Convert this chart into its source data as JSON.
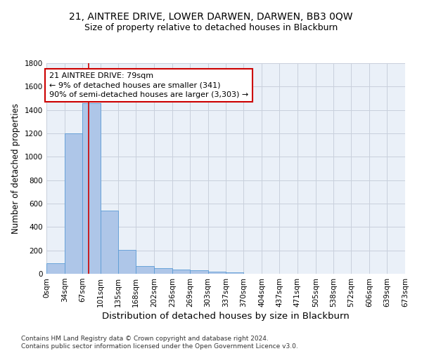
{
  "title": "21, AINTREE DRIVE, LOWER DARWEN, DARWEN, BB3 0QW",
  "subtitle": "Size of property relative to detached houses in Blackburn",
  "xlabel": "Distribution of detached houses by size in Blackburn",
  "ylabel": "Number of detached properties",
  "bar_values": [
    90,
    1200,
    1460,
    540,
    205,
    65,
    48,
    38,
    30,
    18,
    12,
    0,
    0,
    0,
    0,
    0,
    0,
    0,
    0,
    0
  ],
  "bin_edges": [
    0,
    34,
    67,
    101,
    135,
    168,
    202,
    236,
    269,
    303,
    337,
    370,
    404,
    437,
    471,
    505,
    538,
    572,
    606,
    639,
    673
  ],
  "tick_labels": [
    "0sqm",
    "34sqm",
    "67sqm",
    "101sqm",
    "135sqm",
    "168sqm",
    "202sqm",
    "236sqm",
    "269sqm",
    "303sqm",
    "337sqm",
    "370sqm",
    "404sqm",
    "437sqm",
    "471sqm",
    "505sqm",
    "538sqm",
    "572sqm",
    "606sqm",
    "639sqm",
    "673sqm"
  ],
  "bar_color": "#aec6e8",
  "bar_edge_color": "#5b9bd5",
  "property_line_x": 79,
  "property_line_color": "#cc0000",
  "annotation_text": "21 AINTREE DRIVE: 79sqm\n← 9% of detached houses are smaller (341)\n90% of semi-detached houses are larger (3,303) →",
  "annotation_box_color": "#ffffff",
  "annotation_box_edge": "#cc0000",
  "ylim": [
    0,
    1800
  ],
  "yticks": [
    0,
    200,
    400,
    600,
    800,
    1000,
    1200,
    1400,
    1600,
    1800
  ],
  "bg_color": "#eaf0f8",
  "footer_text": "Contains HM Land Registry data © Crown copyright and database right 2024.\nContains public sector information licensed under the Open Government Licence v3.0.",
  "grid_color": "#c8d0dc",
  "title_fontsize": 10,
  "subtitle_fontsize": 9,
  "ylabel_fontsize": 8.5,
  "xlabel_fontsize": 9.5,
  "tick_fontsize": 7.5,
  "annotation_fontsize": 8,
  "footer_fontsize": 6.5
}
